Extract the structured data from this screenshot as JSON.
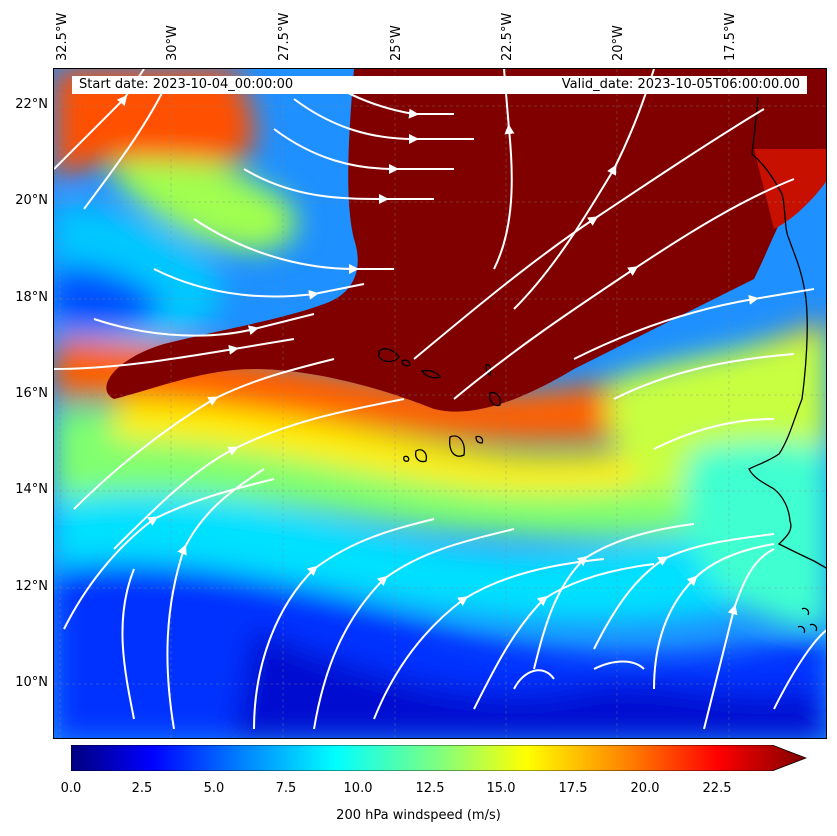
{
  "header": {
    "start_date": "Start date: 2023-10-04_00:00:00",
    "valid_date": "Valid_date: 2023-10-05T06:00:00.00"
  },
  "axes": {
    "lon_labels": [
      "32.5°W",
      "30°W",
      "27.5°W",
      "25°W",
      "22.5°W",
      "20°W",
      "17.5°W"
    ],
    "lat_labels": [
      "22°N",
      "20°N",
      "18°N",
      "16°N",
      "14°N",
      "12°N",
      "10°N"
    ]
  },
  "colorbar": {
    "label": "200 hPa windspeed (m/s)",
    "ticks": [
      "0.0",
      "2.5",
      "5.0",
      "7.5",
      "10.0",
      "12.5",
      "15.0",
      "17.5",
      "20.0",
      "22.5"
    ],
    "colors": [
      "#00007f",
      "#0000ff",
      "#007fff",
      "#00ffff",
      "#7fff7f",
      "#ffff00",
      "#ff7f00",
      "#ff0000",
      "#7f0000"
    ]
  },
  "colors": {
    "high_wind": "#800000",
    "streamline": "#ffffff",
    "coastline": "#000000"
  }
}
